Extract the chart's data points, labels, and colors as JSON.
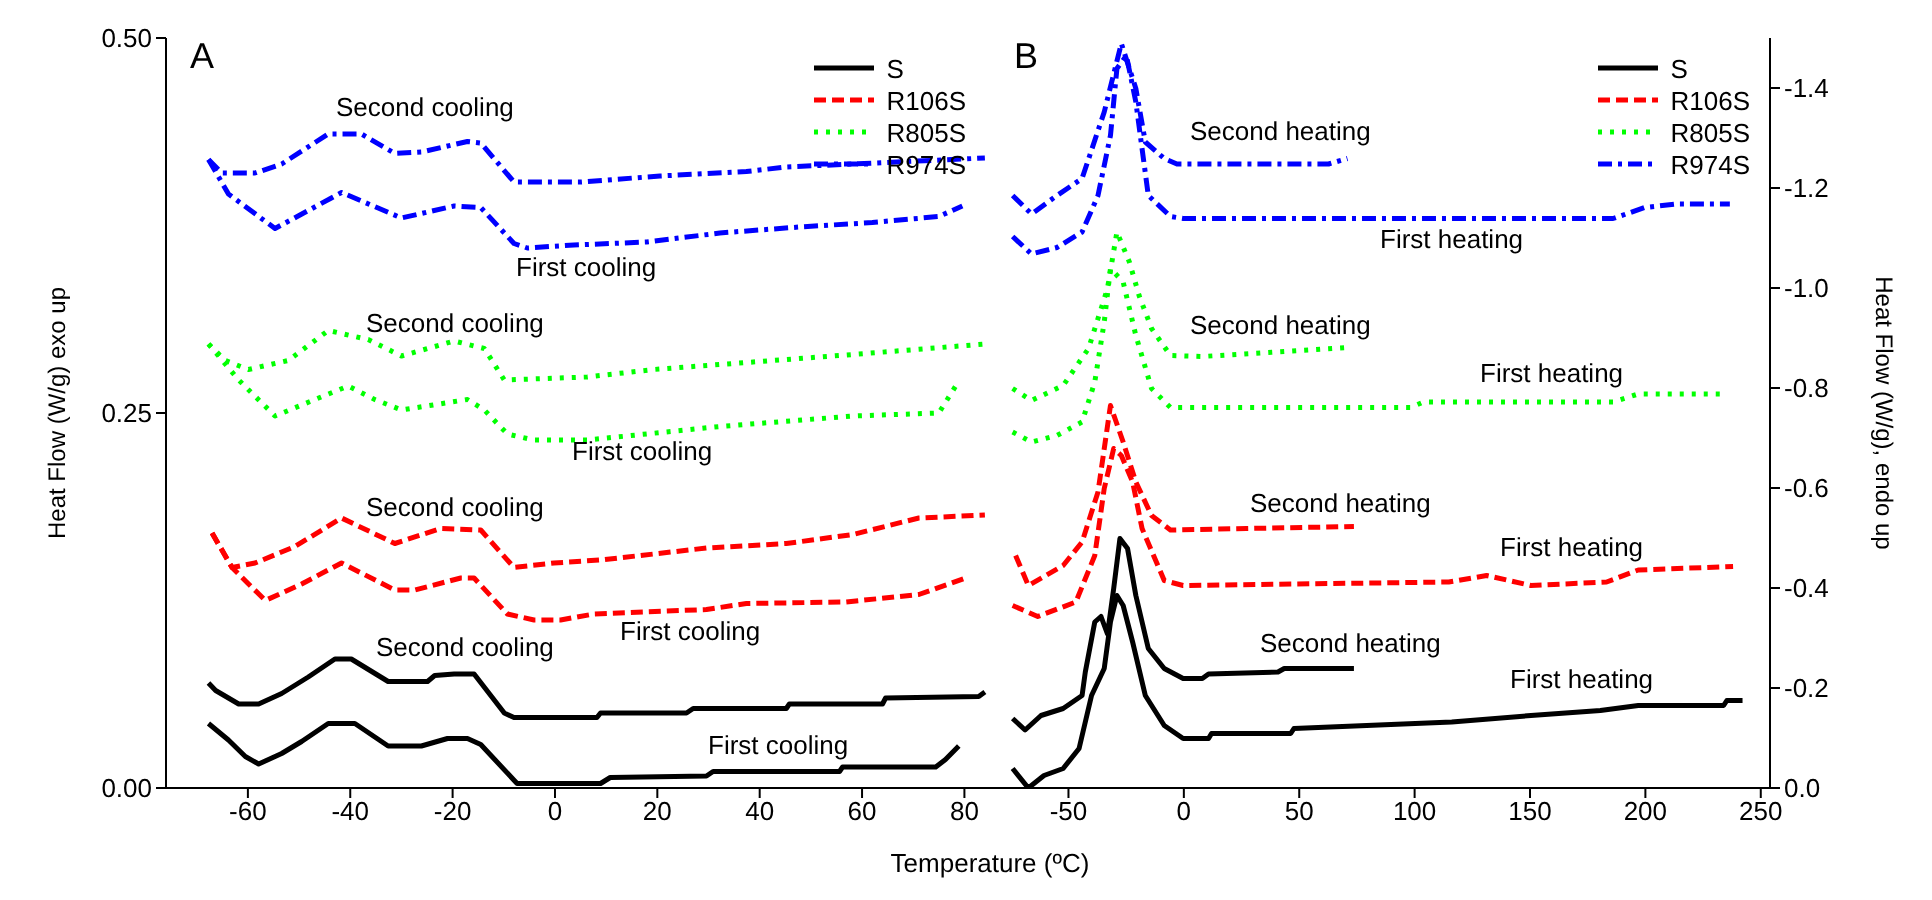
{
  "chart_data": [
    {
      "type": "line",
      "xlabel": "Temperature (ºC)",
      "ylabel": "Heat Flow (W/g) exo up",
      "xlim": [
        -76,
        85
      ],
      "xticks": [
        -60,
        -40,
        -20,
        0,
        20,
        40,
        60,
        80
      ],
      "ylim": [
        0,
        0.5
      ],
      "yticks": [
        {
          "value": 0,
          "label": "0.00"
        },
        0.25,
        {
          "value": 0.5,
          "label": "0.50"
        }
      ],
      "grid": false,
      "legend": "top right",
      "annotations": [
        "A",
        "Second cooling",
        "First cooling",
        "Second cooling",
        "First cooling",
        "Second cooling",
        "First cooling",
        "Second cooling",
        "First cooling"
      ],
      "series": [
        {
          "name": "S",
          "color": "#000000",
          "line_style": "solid",
          "x": [
            -67.7,
            -63.8,
            -60.5,
            -57.9,
            -53.4,
            -49.5,
            -44.3,
            -39.1,
            -32.6,
            -26.1,
            -21,
            -17.1,
            -14.5,
            -7.4,
            8.9,
            10.8,
            29.6,
            30.9,
            55.6,
            56.2,
            74.4,
            76.3,
            78.9
          ],
          "values": [
            0.043,
            0.032,
            0.021,
            0.016,
            0.023,
            0.031,
            0.043,
            0.043,
            0.028,
            0.028,
            0.033,
            0.033,
            0.029,
            0.003,
            0.003,
            0.007,
            0.008,
            0.011,
            0.011,
            0.014,
            0.014,
            0.019,
            0.028
          ]
        },
        {
          "color": "#000000",
          "line_style": "solid",
          "x": [
            -67.7,
            -66.3,
            -61.8,
            -57.9,
            -53.4,
            -48.2,
            -43,
            -39.8,
            -32.6,
            -24.9,
            -23.5,
            -19.7,
            -15.8,
            -9.9,
            -8,
            8.2,
            8.9,
            25.7,
            27,
            45.2,
            45.8,
            64,
            64.6,
            82.8,
            84
          ],
          "values": [
            0.07,
            0.065,
            0.056,
            0.056,
            0.063,
            0.074,
            0.086,
            0.086,
            0.071,
            0.071,
            0.075,
            0.076,
            0.076,
            0.05,
            0.047,
            0.047,
            0.05,
            0.05,
            0.053,
            0.053,
            0.056,
            0.056,
            0.06,
            0.061,
            0.064
          ]
        },
        {
          "name": "R106S",
          "color": "#ff0000",
          "line_style": "dashed",
          "x": [
            -67,
            -63.1,
            -56.6,
            -49.5,
            -41.7,
            -31.3,
            -27.4,
            -18.4,
            -15.8,
            -9.3,
            -4.1,
            1.1,
            7.6,
            29.6,
            37.4,
            56.8,
            71.1,
            80.2
          ],
          "values": [
            0.17,
            0.147,
            0.125,
            0.136,
            0.15,
            0.132,
            0.132,
            0.14,
            0.14,
            0.116,
            0.112,
            0.112,
            0.116,
            0.119,
            0.123,
            0.124,
            0.129,
            0.14
          ]
        },
        {
          "color": "#ff0000",
          "line_style": "dashed",
          "x": [
            -67,
            -63.1,
            -58.6,
            -50.8,
            -41.7,
            -31.3,
            -22.3,
            -14.5,
            -8,
            -0.2,
            8.9,
            19.3,
            29.6,
            45.2,
            58.2,
            71.1,
            84
          ],
          "values": [
            0.17,
            0.147,
            0.15,
            0.161,
            0.18,
            0.163,
            0.173,
            0.172,
            0.147,
            0.15,
            0.152,
            0.156,
            0.16,
            0.163,
            0.169,
            0.18,
            0.182
          ]
        },
        {
          "name": "R805S",
          "color": "#00ff00",
          "line_style": "dotted",
          "x": [
            -67.7,
            -61.8,
            -54.7,
            -46.9,
            -40.4,
            -35.2,
            -30,
            -17.1,
            -13.8,
            -9.3,
            -4.1,
            6.3,
            32.2,
            58.2,
            75,
            78.3
          ],
          "values": [
            0.296,
            0.272,
            0.248,
            0.259,
            0.268,
            0.259,
            0.252,
            0.259,
            0.252,
            0.236,
            0.232,
            0.232,
            0.241,
            0.248,
            0.25,
            0.268
          ]
        },
        {
          "color": "#00ff00",
          "line_style": "dotted",
          "x": [
            -67.7,
            -64.4,
            -59.9,
            -52.1,
            -44.3,
            -36.5,
            -30,
            -19.7,
            -13.8,
            -9.9,
            6.3,
            19.3,
            38.7,
            58.2,
            84
          ],
          "values": [
            0.296,
            0.285,
            0.279,
            0.285,
            0.305,
            0.299,
            0.288,
            0.298,
            0.293,
            0.272,
            0.274,
            0.279,
            0.284,
            0.289,
            0.296
          ]
        },
        {
          "name": "R974S",
          "color": "#0000ff",
          "line_style": "dashdot",
          "x": [
            -67.7,
            -63.8,
            -54.7,
            -41.7,
            -30,
            -19.7,
            -14.5,
            -8,
            -5.4,
            3.7,
            17.9,
            32.2,
            47.8,
            62,
            75,
            79.6
          ],
          "values": [
            0.419,
            0.396,
            0.373,
            0.397,
            0.38,
            0.388,
            0.387,
            0.363,
            0.36,
            0.362,
            0.364,
            0.37,
            0.374,
            0.377,
            0.381,
            0.388
          ]
        },
        {
          "color": "#0000ff",
          "line_style": "dashdot",
          "x": [
            -67.7,
            -65.1,
            -58.6,
            -53.4,
            -44.3,
            -37.8,
            -31.3,
            -26.1,
            -17.1,
            -14.5,
            -8,
            5,
            20.5,
            37.4,
            45.2,
            84
          ],
          "values": [
            0.419,
            0.41,
            0.41,
            0.416,
            0.436,
            0.436,
            0.423,
            0.424,
            0.431,
            0.43,
            0.404,
            0.404,
            0.408,
            0.411,
            0.414,
            0.42
          ]
        }
      ]
    },
    {
      "type": "line",
      "ylabel": "Heat Flow (W/g), endo up",
      "xlim": [
        -84,
        254
      ],
      "xticks": [
        -50,
        0,
        50,
        100,
        150,
        200,
        250
      ],
      "ylim": [
        0,
        -1.5
      ],
      "yticks": [
        {
          "value": 0,
          "label": "0.0"
        },
        -0.2,
        -0.4,
        -0.6,
        -0.8,
        {
          "value": -1,
          "label": "-1.0"
        },
        -1.2,
        -1.4
      ],
      "grid": false,
      "legend": "top right",
      "annotations": [
        "B",
        "Second heating",
        "First heating",
        "Second heating",
        "First heating",
        "Second heating",
        "First heating",
        "Second heating",
        "First heating"
      ],
      "series": [
        {
          "name": "S",
          "color": "#000000",
          "line_style": "solid",
          "x": [
            -74.2,
            -67.4,
            -60.6,
            -52.3,
            -45.4,
            -40,
            -34.5,
            -31.8,
            -29,
            -26.3,
            -22.2,
            -16.7,
            -8.5,
            -0.3,
            10.7,
            12,
            46.3,
            47.7,
            79.2,
            116.1,
            150.4,
            180.5,
            196.9,
            233.9,
            235.3,
            242.1
          ],
          "values": [
            -0.039,
            0,
            -0.025,
            -0.039,
            -0.079,
            -0.185,
            -0.239,
            -0.332,
            -0.385,
            -0.365,
            -0.292,
            -0.185,
            -0.125,
            -0.099,
            -0.099,
            -0.109,
            -0.109,
            -0.119,
            -0.125,
            -0.132,
            -0.145,
            -0.155,
            -0.165,
            -0.165,
            -0.175,
            -0.175
          ]
        },
        {
          "color": "#000000",
          "line_style": "solid",
          "x": [
            -74.2,
            -68.8,
            -61.9,
            -52.3,
            -44.1,
            -42.7,
            -38.6,
            -35.9,
            -33.1,
            -30.4,
            -27.7,
            -24.4,
            -20.8,
            -15.4,
            -8.5,
            -0.3,
            8,
            10.7,
            40.8,
            43.5,
            73.7
          ],
          "values": [
            -0.139,
            -0.116,
            -0.145,
            -0.159,
            -0.185,
            -0.232,
            -0.332,
            -0.343,
            -0.308,
            -0.399,
            -0.499,
            -0.479,
            -0.385,
            -0.279,
            -0.239,
            -0.219,
            -0.219,
            -0.228,
            -0.232,
            -0.239,
            -0.239
          ]
        },
        {
          "name": "R106S",
          "color": "#ff0000",
          "line_style": "dashed",
          "x": [
            -74.2,
            -63.3,
            -46.8,
            -38.6,
            -34.5,
            -30.4,
            -27.1,
            -22.2,
            -18.1,
            -8.5,
            -0.3,
            114.8,
            131.2,
            150.4,
            183.2,
            196.9,
            238
          ],
          "values": [
            -0.365,
            -0.343,
            -0.372,
            -0.465,
            -0.599,
            -0.679,
            -0.665,
            -0.612,
            -0.519,
            -0.415,
            -0.405,
            -0.412,
            -0.425,
            -0.405,
            -0.412,
            -0.436,
            -0.443
          ]
        },
        {
          "color": "#ff0000",
          "line_style": "dashed",
          "x": [
            -72.9,
            -67.4,
            -52.3,
            -44.1,
            -37.2,
            -31.8,
            -26.3,
            -20.8,
            -14,
            -5.8,
            27.1,
            73.7
          ],
          "values": [
            -0.465,
            -0.405,
            -0.445,
            -0.492,
            -0.592,
            -0.765,
            -0.692,
            -0.612,
            -0.545,
            -0.516,
            -0.519,
            -0.523
          ]
        },
        {
          "name": "R805S",
          "color": "#00ff00",
          "line_style": "dotted",
          "x": [
            -74.2,
            -66,
            -55,
            -44.1,
            -38.6,
            -34.5,
            -31.8,
            -26.3,
            -20.8,
            -14,
            -5.8,
            98.3,
            103.8,
            186,
            196.9,
            235.3
          ],
          "values": [
            -0.712,
            -0.692,
            -0.705,
            -0.732,
            -0.812,
            -0.932,
            -1.039,
            -1.012,
            -0.905,
            -0.799,
            -0.761,
            -0.761,
            -0.772,
            -0.772,
            -0.788,
            -0.788
          ]
        },
        {
          "color": "#00ff00",
          "line_style": "dotted",
          "x": [
            -74.2,
            -66,
            -52.3,
            -41.3,
            -33.1,
            -29,
            -23.6,
            -19.4,
            -14,
            -5.8,
            8,
            70.9
          ],
          "values": [
            -0.799,
            -0.775,
            -0.805,
            -0.879,
            -0.999,
            -1.112,
            -1.052,
            -0.985,
            -0.919,
            -0.865,
            -0.863,
            -0.881
          ]
        },
        {
          "name": "R974S",
          "color": "#0000ff",
          "line_style": "dashdot",
          "x": [
            -74.2,
            -66,
            -55,
            -44.1,
            -37.2,
            -31.8,
            -29,
            -24.9,
            -20.8,
            -15.4,
            -5.8,
            -0.3,
            186,
            199.7,
            213.4,
            236.6
          ],
          "values": [
            -1.103,
            -1.068,
            -1.081,
            -1.112,
            -1.185,
            -1.305,
            -1.439,
            -1.465,
            -1.372,
            -1.185,
            -1.143,
            -1.139,
            -1.139,
            -1.161,
            -1.168,
            -1.168
          ]
        },
        {
          "color": "#0000ff",
          "line_style": "dashdot",
          "x": [
            -74.2,
            -66,
            -55,
            -44.1,
            -34.5,
            -27.1,
            -20.8,
            -16.7,
            -8.5,
            -3,
            62.7,
            70.9
          ],
          "values": [
            -1.185,
            -1.148,
            -1.185,
            -1.219,
            -1.352,
            -1.489,
            -1.399,
            -1.292,
            -1.259,
            -1.248,
            -1.248,
            -1.259
          ]
        }
      ]
    }
  ]
}
